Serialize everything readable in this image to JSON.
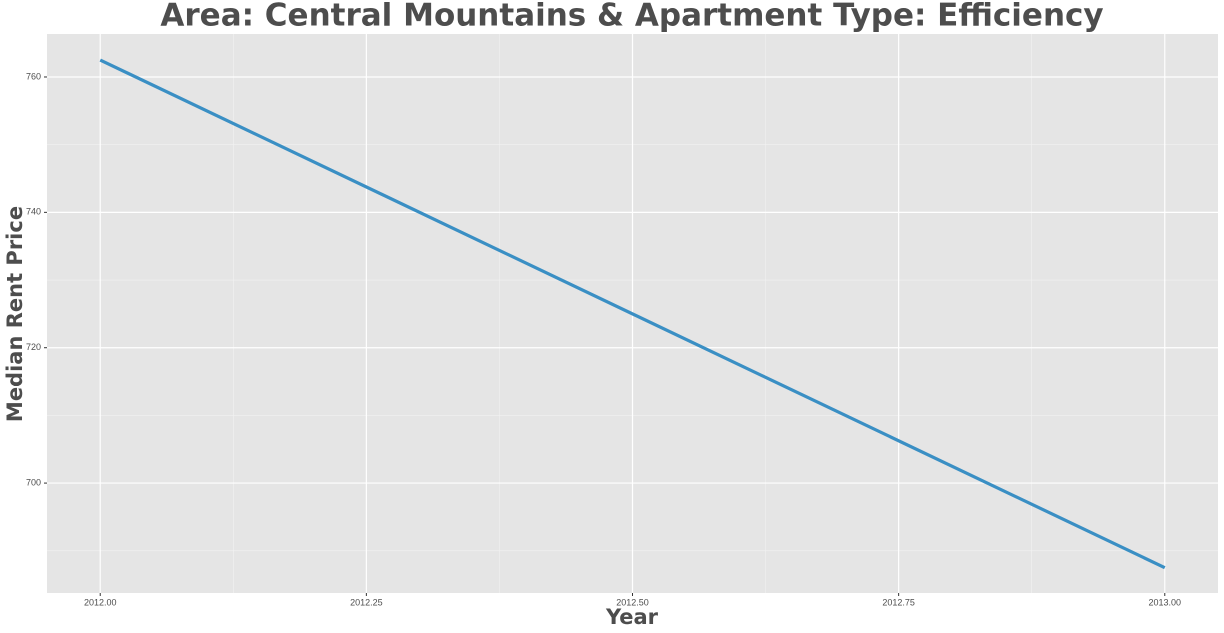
{
  "chart_data": {
    "type": "line",
    "title": "Area: Central Mountains & Apartment Type: Efficiency",
    "x_label": "Year",
    "y_label": "Median Rent Price",
    "x": [
      2012.0,
      2013.0
    ],
    "series": [
      {
        "color": "#3a8fc4",
        "values": [
          762.5,
          687.5
        ]
      }
    ],
    "xlim": [
      2011.95,
      2013.05
    ],
    "xticks": [
      {
        "value": 2012.0,
        "label": "2012.00"
      },
      {
        "value": 2012.25,
        "label": "2012.25"
      },
      {
        "value": 2012.5,
        "label": "2012.50"
      },
      {
        "value": 2012.75,
        "label": "2012.75"
      },
      {
        "value": 2013.0,
        "label": "2013.00"
      }
    ],
    "ylim": [
      683.76,
      766.35
    ],
    "yticks": [
      700,
      720,
      740,
      760
    ],
    "grid": true,
    "minor_grid": true
  }
}
